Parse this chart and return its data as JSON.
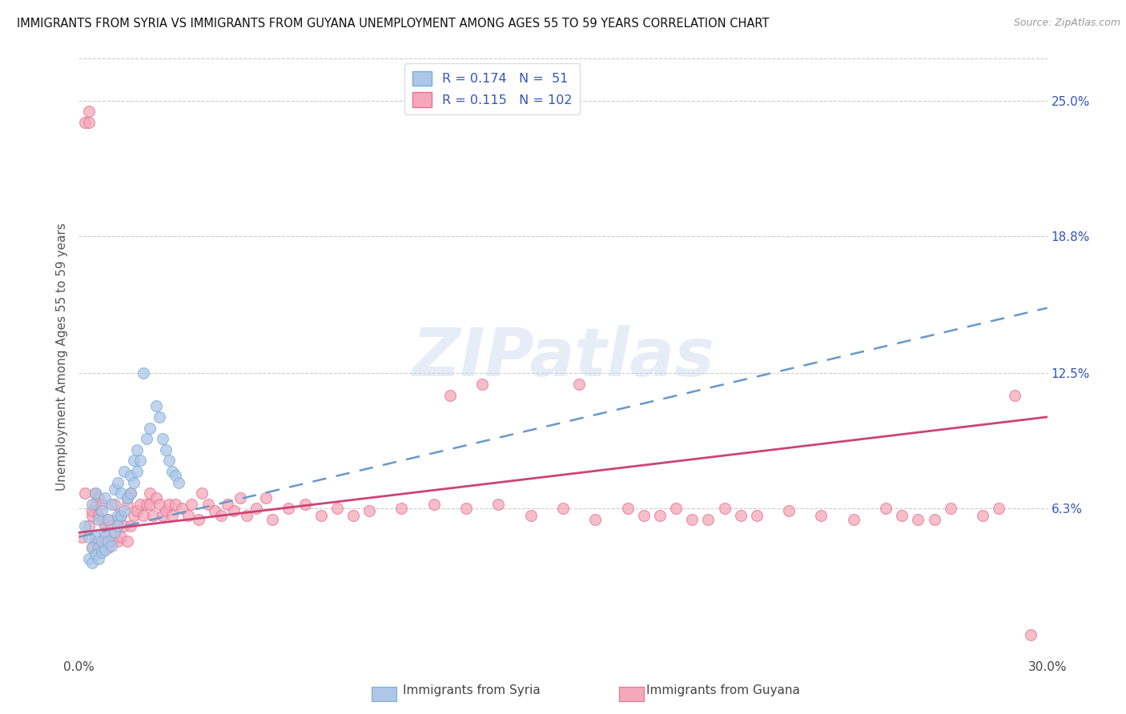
{
  "title": "IMMIGRANTS FROM SYRIA VS IMMIGRANTS FROM GUYANA UNEMPLOYMENT AMONG AGES 55 TO 59 YEARS CORRELATION CHART",
  "source": "Source: ZipAtlas.com",
  "ylabel": "Unemployment Among Ages 55 to 59 years",
  "xlim": [
    0.0,
    0.3
  ],
  "ylim": [
    -0.005,
    0.27
  ],
  "right_yticks": [
    0.063,
    0.125,
    0.188,
    0.25
  ],
  "right_ytick_labels": [
    "6.3%",
    "12.5%",
    "18.8%",
    "25.0%"
  ],
  "syria_R": 0.174,
  "syria_N": 51,
  "guyana_R": 0.115,
  "guyana_N": 102,
  "syria_fill_color": "#aec6e8",
  "guyana_fill_color": "#f4a8ba",
  "syria_edge_color": "#7aadd4",
  "guyana_edge_color": "#e87090",
  "trend_syria_color": "#6699cc",
  "trend_guyana_color": "#cc4477",
  "legend_color": "#3355bb",
  "watermark": "ZIPatlas",
  "syria_scatter_x": [
    0.002,
    0.004,
    0.004,
    0.005,
    0.005,
    0.006,
    0.006,
    0.007,
    0.007,
    0.008,
    0.008,
    0.009,
    0.01,
    0.011,
    0.012,
    0.012,
    0.013,
    0.014,
    0.015,
    0.016,
    0.017,
    0.018,
    0.003,
    0.003,
    0.004,
    0.005,
    0.006,
    0.007,
    0.008,
    0.009,
    0.01,
    0.011,
    0.012,
    0.013,
    0.014,
    0.015,
    0.016,
    0.017,
    0.018,
    0.019,
    0.02,
    0.021,
    0.022,
    0.024,
    0.025,
    0.026,
    0.027,
    0.028,
    0.029,
    0.03,
    0.031
  ],
  "syria_scatter_y": [
    0.055,
    0.045,
    0.065,
    0.05,
    0.07,
    0.045,
    0.058,
    0.048,
    0.062,
    0.052,
    0.068,
    0.058,
    0.065,
    0.072,
    0.06,
    0.075,
    0.07,
    0.08,
    0.068,
    0.078,
    0.085,
    0.09,
    0.04,
    0.05,
    0.038,
    0.042,
    0.04,
    0.043,
    0.044,
    0.048,
    0.046,
    0.052,
    0.055,
    0.06,
    0.062,
    0.068,
    0.07,
    0.075,
    0.08,
    0.085,
    0.125,
    0.095,
    0.1,
    0.11,
    0.105,
    0.095,
    0.09,
    0.085,
    0.08,
    0.078,
    0.075
  ],
  "guyana_scatter_x": [
    0.001,
    0.002,
    0.002,
    0.003,
    0.003,
    0.003,
    0.004,
    0.004,
    0.004,
    0.005,
    0.005,
    0.005,
    0.006,
    0.006,
    0.006,
    0.007,
    0.007,
    0.007,
    0.008,
    0.008,
    0.009,
    0.009,
    0.01,
    0.01,
    0.011,
    0.011,
    0.012,
    0.012,
    0.013,
    0.013,
    0.014,
    0.015,
    0.015,
    0.016,
    0.016,
    0.017,
    0.018,
    0.019,
    0.02,
    0.021,
    0.022,
    0.022,
    0.023,
    0.024,
    0.025,
    0.026,
    0.027,
    0.028,
    0.029,
    0.03,
    0.032,
    0.034,
    0.035,
    0.037,
    0.038,
    0.04,
    0.042,
    0.044,
    0.046,
    0.048,
    0.05,
    0.052,
    0.055,
    0.058,
    0.06,
    0.065,
    0.07,
    0.075,
    0.08,
    0.085,
    0.09,
    0.1,
    0.11,
    0.12,
    0.125,
    0.13,
    0.14,
    0.15,
    0.155,
    0.16,
    0.17,
    0.18,
    0.185,
    0.19,
    0.2,
    0.21,
    0.22,
    0.23,
    0.24,
    0.25,
    0.255,
    0.26,
    0.27,
    0.28,
    0.285,
    0.29,
    0.295,
    0.265,
    0.115,
    0.175,
    0.195,
    0.205
  ],
  "guyana_scatter_y": [
    0.05,
    0.07,
    0.24,
    0.055,
    0.24,
    0.245,
    0.045,
    0.06,
    0.062,
    0.048,
    0.065,
    0.07,
    0.045,
    0.06,
    0.068,
    0.048,
    0.058,
    0.065,
    0.05,
    0.055,
    0.045,
    0.058,
    0.048,
    0.055,
    0.052,
    0.065,
    0.048,
    0.058,
    0.05,
    0.06,
    0.055,
    0.048,
    0.065,
    0.055,
    0.07,
    0.06,
    0.062,
    0.065,
    0.06,
    0.065,
    0.065,
    0.07,
    0.06,
    0.068,
    0.065,
    0.06,
    0.062,
    0.065,
    0.06,
    0.065,
    0.063,
    0.06,
    0.065,
    0.058,
    0.07,
    0.065,
    0.062,
    0.06,
    0.065,
    0.062,
    0.068,
    0.06,
    0.063,
    0.068,
    0.058,
    0.063,
    0.065,
    0.06,
    0.063,
    0.06,
    0.062,
    0.063,
    0.065,
    0.063,
    0.12,
    0.065,
    0.06,
    0.063,
    0.12,
    0.058,
    0.063,
    0.06,
    0.063,
    0.058,
    0.063,
    0.06,
    0.062,
    0.06,
    0.058,
    0.063,
    0.06,
    0.058,
    0.063,
    0.06,
    0.063,
    0.115,
    0.005,
    0.058,
    0.115,
    0.06,
    0.058,
    0.06
  ],
  "syria_trend_x0": 0.0,
  "syria_trend_y0": 0.05,
  "syria_trend_x1": 0.3,
  "syria_trend_y1": 0.155,
  "guyana_trend_x0": 0.0,
  "guyana_trend_y0": 0.052,
  "guyana_trend_x1": 0.3,
  "guyana_trend_y1": 0.105
}
